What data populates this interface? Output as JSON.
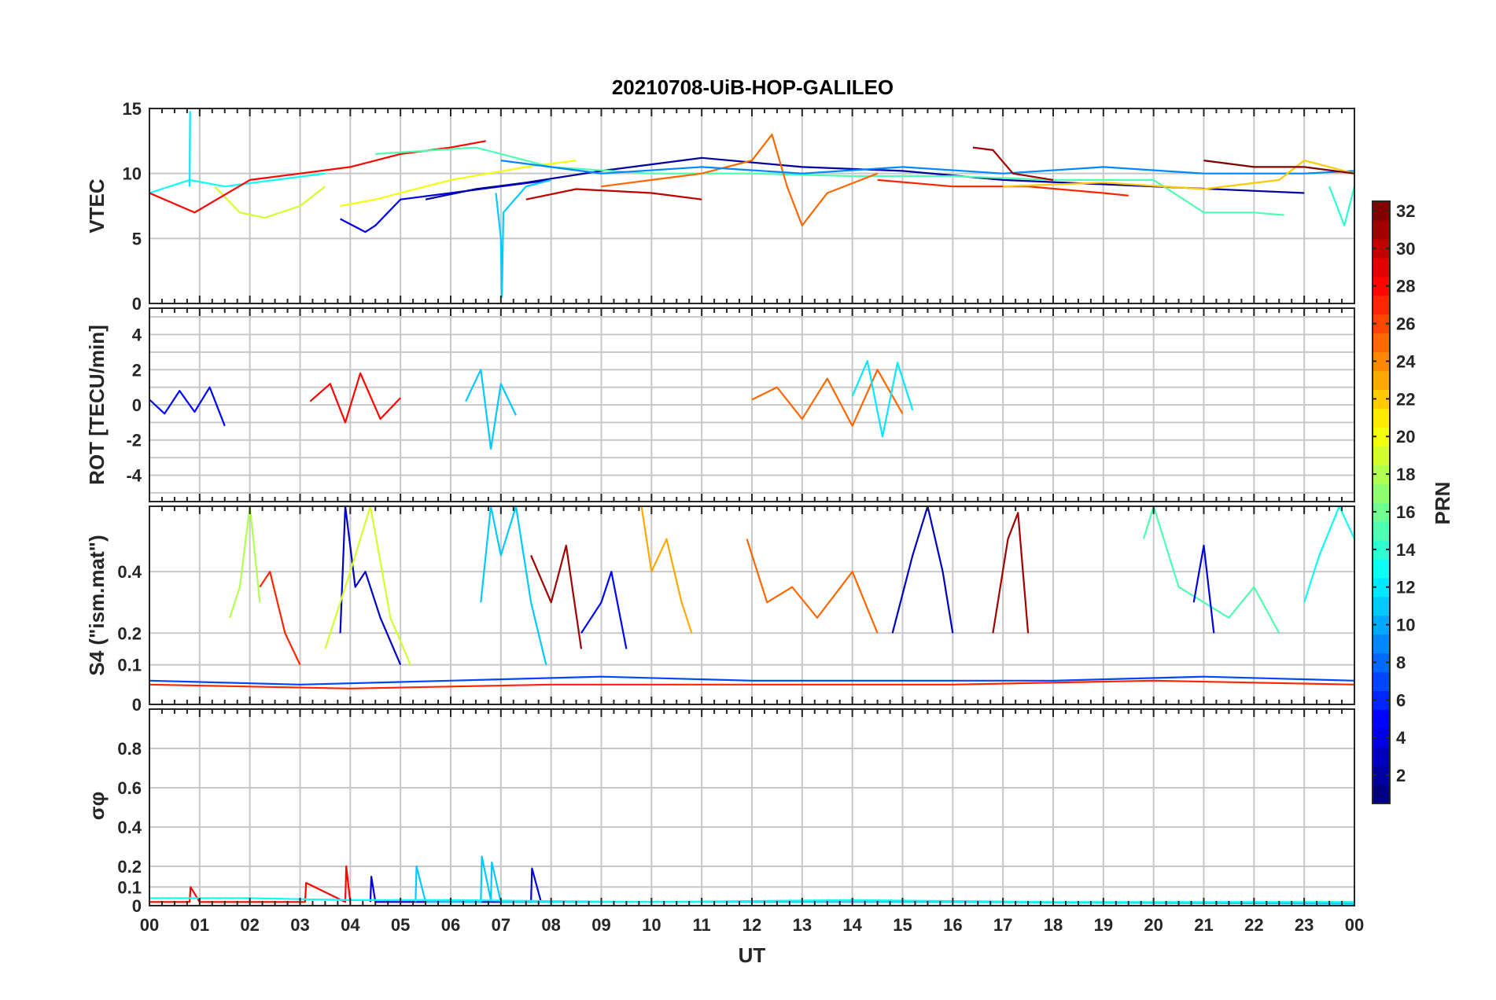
{
  "title": "20210708-UiB-HOP-GALILEO",
  "colors": {
    "axis": "#262626",
    "grid": "#c8c8c8",
    "background": "#ffffff",
    "colormap": "jet"
  },
  "chart_data": [
    {
      "type": "line",
      "panel": "vtec",
      "ylabel": "VTEC",
      "ylim": [
        0,
        15
      ],
      "yticks": [
        "0",
        "5",
        "10",
        "15"
      ],
      "xlim": [
        0,
        24
      ],
      "xticks": [
        "00",
        "01",
        "02",
        "03",
        "04",
        "05",
        "06",
        "07",
        "08",
        "09",
        "10",
        "11",
        "12",
        "13",
        "14",
        "15",
        "16",
        "17",
        "18",
        "19",
        "20",
        "21",
        "22",
        "23",
        "00"
      ],
      "grid": true,
      "series": [
        {
          "prn": 13,
          "x": [
            0.0,
            0.8,
            1.5,
            2.5,
            3.5
          ],
          "y": [
            8.5,
            9.5,
            9.0,
            9.5,
            10.0
          ]
        },
        {
          "prn": 12,
          "x": [
            0.8,
            0.81
          ],
          "y": [
            9.0,
            14.8
          ]
        },
        {
          "prn": 19,
          "x": [
            1.3,
            1.8,
            2.3,
            3.0,
            3.5
          ],
          "y": [
            9.0,
            7.0,
            6.6,
            7.5,
            9.0
          ]
        },
        {
          "prn": 28,
          "x": [
            0.0,
            0.9,
            2.0,
            3.0,
            4.0,
            5.0,
            6.0,
            6.7
          ],
          "y": [
            8.5,
            7.0,
            9.5,
            10.0,
            10.5,
            11.5,
            12.0,
            12.5
          ]
        },
        {
          "prn": 4,
          "x": [
            3.8,
            4.3,
            4.5,
            5.0,
            6.0,
            7.0,
            8.0
          ],
          "y": [
            6.5,
            5.5,
            6.0,
            8.0,
            8.5,
            9.0,
            9.5
          ]
        },
        {
          "prn": 2,
          "x": [
            5.5,
            6.5,
            7.5,
            9.0,
            11.0,
            13.0,
            15.0,
            17.0,
            20.0,
            23.0
          ],
          "y": [
            8.0,
            8.8,
            9.3,
            10.2,
            11.2,
            10.5,
            10.2,
            9.5,
            9.0,
            8.5
          ]
        },
        {
          "prn": 20,
          "x": [
            3.8,
            4.5,
            6.0,
            7.5,
            8.5
          ],
          "y": [
            7.5,
            8.0,
            9.5,
            10.5,
            11.0
          ]
        },
        {
          "prn": 15,
          "x": [
            4.5,
            6.5,
            8.0,
            10.0,
            12.0,
            14.0,
            16.0,
            18.0,
            20.0,
            21.0,
            22.0,
            22.6
          ],
          "y": [
            11.5,
            12.0,
            10.5,
            10.0,
            10.0,
            9.8,
            9.8,
            9.5,
            9.5,
            7.0,
            7.0,
            6.8
          ]
        },
        {
          "prn": 11,
          "x": [
            6.9,
            7.0,
            7.02,
            7.05,
            7.5,
            8.0
          ],
          "y": [
            8.5,
            5.0,
            0.5,
            7.0,
            9.0,
            9.5
          ]
        },
        {
          "prn": 30,
          "x": [
            7.5,
            8.5,
            10.0,
            11.0
          ],
          "y": [
            8.0,
            8.8,
            8.5,
            8.0
          ]
        },
        {
          "prn": 25,
          "x": [
            9.0,
            10.0,
            11.0,
            12.0,
            12.4,
            12.7,
            13.0,
            13.5,
            14.5
          ],
          "y": [
            9.0,
            9.5,
            10.0,
            11.0,
            13.0,
            9.0,
            6.0,
            8.5,
            10.0
          ]
        },
        {
          "prn": 9,
          "x": [
            7.0,
            9.0,
            11.0,
            13.0,
            15.0,
            17.0,
            19.0,
            21.0,
            23.0,
            24.0
          ],
          "y": [
            11.0,
            10.0,
            10.5,
            10.0,
            10.5,
            10.0,
            10.5,
            10.0,
            10.0,
            10.2
          ]
        },
        {
          "prn": 31,
          "x": [
            16.4,
            16.8,
            17.2,
            18.0
          ],
          "y": [
            12.0,
            11.8,
            10.0,
            9.5
          ]
        },
        {
          "prn": 27,
          "x": [
            14.5,
            16.0,
            17.5,
            19.0,
            19.5
          ],
          "y": [
            9.5,
            9.0,
            9.0,
            8.5,
            8.3
          ]
        },
        {
          "prn": 22,
          "x": [
            17.0,
            19.0,
            21.0,
            22.5,
            23.0,
            24.0
          ],
          "y": [
            9.0,
            9.3,
            8.8,
            9.5,
            11.0,
            10.0
          ]
        },
        {
          "prn": 32,
          "x": [
            21.0,
            22.0,
            23.0,
            24.0
          ],
          "y": [
            11.0,
            10.5,
            10.5,
            10.0
          ]
        },
        {
          "prn": 14,
          "x": [
            23.5,
            23.8,
            24.0
          ],
          "y": [
            9.0,
            6.0,
            9.0
          ]
        }
      ]
    },
    {
      "type": "line",
      "panel": "rot",
      "ylabel": "ROT [TECU/min]",
      "ylim": [
        -5.5,
        5.5
      ],
      "yticks": [
        "-4",
        "-2",
        "0",
        "2",
        "4"
      ],
      "xlim": [
        0,
        24
      ],
      "grid": true,
      "series": [
        {
          "prn": 5,
          "x": [
            0.0,
            0.3,
            0.6,
            0.9,
            1.2,
            1.5
          ],
          "y": [
            0.3,
            -0.5,
            0.8,
            -0.4,
            1.0,
            -1.2
          ]
        },
        {
          "prn": 28,
          "x": [
            3.2,
            3.6,
            3.9,
            4.2,
            4.6,
            5.0
          ],
          "y": [
            0.2,
            1.2,
            -1.0,
            1.8,
            -0.8,
            0.4
          ]
        },
        {
          "prn": 11,
          "x": [
            6.3,
            6.6,
            6.8,
            7.0,
            7.3
          ],
          "y": [
            0.2,
            2.0,
            -2.5,
            1.2,
            -0.6
          ]
        },
        {
          "prn": 25,
          "x": [
            12.0,
            12.5,
            13.0,
            13.5,
            14.0,
            14.5,
            15.0
          ],
          "y": [
            0.3,
            1.0,
            -0.8,
            1.5,
            -1.2,
            2.0,
            -0.5
          ]
        },
        {
          "prn": 12,
          "x": [
            14.0,
            14.3,
            14.6,
            14.9,
            15.2
          ],
          "y": [
            0.5,
            2.5,
            -1.8,
            2.4,
            -0.3
          ]
        }
      ]
    },
    {
      "type": "line",
      "panel": "s4",
      "ylabel": "S4 (\"ism.mat\")",
      "ylim": [
        0,
        0.6
      ],
      "yticks": [
        "0",
        "0.1",
        "0.2",
        "0.4"
      ],
      "xlim": [
        0,
        24
      ],
      "grid": true,
      "series": [
        {
          "prn": 18,
          "x": [
            1.6,
            1.8,
            2.0,
            2.2
          ],
          "y": [
            0.25,
            0.35,
            0.6,
            0.3
          ]
        },
        {
          "prn": 27,
          "x": [
            2.2,
            2.4,
            2.7,
            3.0
          ],
          "y": [
            0.35,
            0.4,
            0.2,
            0.1
          ]
        },
        {
          "prn": 3,
          "x": [
            3.8,
            3.9,
            4.1,
            4.3,
            4.6,
            5.0
          ],
          "y": [
            0.2,
            0.6,
            0.35,
            0.4,
            0.25,
            0.1
          ]
        },
        {
          "prn": 19,
          "x": [
            3.5,
            4.0,
            4.4,
            4.8,
            5.2
          ],
          "y": [
            0.15,
            0.4,
            0.6,
            0.25,
            0.1
          ]
        },
        {
          "prn": 11,
          "x": [
            6.6,
            6.8,
            7.0,
            7.3,
            7.6,
            7.9
          ],
          "y": [
            0.3,
            0.6,
            0.45,
            0.6,
            0.3,
            0.1
          ]
        },
        {
          "prn": 31,
          "x": [
            7.6,
            8.0,
            8.3,
            8.6
          ],
          "y": [
            0.45,
            0.3,
            0.48,
            0.15
          ]
        },
        {
          "prn": 5,
          "x": [
            8.6,
            9.0,
            9.2,
            9.5
          ],
          "y": [
            0.2,
            0.3,
            0.4,
            0.15
          ]
        },
        {
          "prn": 23,
          "x": [
            9.8,
            10.0,
            10.3,
            10.6,
            10.8
          ],
          "y": [
            0.6,
            0.4,
            0.5,
            0.3,
            0.2
          ]
        },
        {
          "prn": 25,
          "x": [
            11.9,
            12.3,
            12.8,
            13.3,
            14.0,
            14.5
          ],
          "y": [
            0.5,
            0.3,
            0.35,
            0.25,
            0.4,
            0.2
          ]
        },
        {
          "prn": 3,
          "x": [
            14.8,
            15.2,
            15.5,
            15.8,
            16.0
          ],
          "y": [
            0.2,
            0.45,
            0.6,
            0.4,
            0.2
          ]
        },
        {
          "prn": 31,
          "x": [
            16.8,
            17.1,
            17.3,
            17.5
          ],
          "y": [
            0.2,
            0.5,
            0.58,
            0.2
          ]
        },
        {
          "prn": 15,
          "x": [
            19.8,
            20.0,
            20.5,
            21.0,
            21.5,
            22.0,
            22.5
          ],
          "y": [
            0.5,
            0.6,
            0.35,
            0.3,
            0.25,
            0.35,
            0.2
          ]
        },
        {
          "prn": 4,
          "x": [
            20.8,
            21.0,
            21.2
          ],
          "y": [
            0.3,
            0.48,
            0.2
          ]
        },
        {
          "prn": 13,
          "x": [
            23.0,
            23.3,
            23.7,
            24.0
          ],
          "y": [
            0.3,
            0.45,
            0.6,
            0.5
          ]
        },
        {
          "prn": 7,
          "x": [
            0.0,
            3.0,
            6.0,
            9.0,
            12.0,
            15.0,
            18.0,
            21.0,
            24.0
          ],
          "y": [
            0.06,
            0.05,
            0.06,
            0.07,
            0.06,
            0.06,
            0.06,
            0.07,
            0.06
          ]
        },
        {
          "prn": 27,
          "x": [
            0.0,
            4.0,
            8.0,
            12.0,
            16.0,
            20.0,
            24.0
          ],
          "y": [
            0.05,
            0.04,
            0.05,
            0.05,
            0.05,
            0.06,
            0.05
          ]
        }
      ]
    },
    {
      "type": "line",
      "panel": "sigma_phi",
      "ylabel": "σφ",
      "ylim": [
        0,
        1.0
      ],
      "yticks": [
        "0",
        "0.1",
        "0.2",
        "0.4",
        "0.6",
        "0.8"
      ],
      "xlim": [
        0,
        24
      ],
      "xlabel": "UT",
      "grid": true,
      "series": [
        {
          "prn": 28,
          "x": [
            0.0,
            0.8,
            0.82,
            1.0,
            3.1,
            3.12,
            3.9,
            3.92,
            4.0
          ],
          "y": [
            0.02,
            0.02,
            0.1,
            0.02,
            0.02,
            0.12,
            0.02,
            0.2,
            0.02
          ]
        },
        {
          "prn": 4,
          "x": [
            4.4,
            4.42,
            4.5,
            7.6,
            7.62,
            7.8
          ],
          "y": [
            0.02,
            0.15,
            0.02,
            0.02,
            0.19,
            0.02
          ]
        },
        {
          "prn": 11,
          "x": [
            5.3,
            5.32,
            5.5,
            6.6,
            6.62,
            6.8,
            6.82,
            7.0,
            8.0,
            12.0,
            16.0,
            24.0
          ],
          "y": [
            0.02,
            0.2,
            0.02,
            0.02,
            0.25,
            0.03,
            0.22,
            0.02,
            0.02,
            0.02,
            0.02,
            0.01
          ]
        },
        {
          "prn": 13,
          "x": [
            0.0,
            2.0,
            4.0,
            6.0,
            10.0,
            14.0,
            18.0,
            24.0
          ],
          "y": [
            0.04,
            0.04,
            0.03,
            0.03,
            0.02,
            0.03,
            0.02,
            0.02
          ]
        }
      ]
    }
  ],
  "colorbar": {
    "label": "PRN",
    "min": 1,
    "max": 32,
    "ticks": [
      "2",
      "4",
      "6",
      "8",
      "10",
      "12",
      "14",
      "16",
      "18",
      "20",
      "22",
      "24",
      "26",
      "28",
      "30",
      "32"
    ]
  }
}
